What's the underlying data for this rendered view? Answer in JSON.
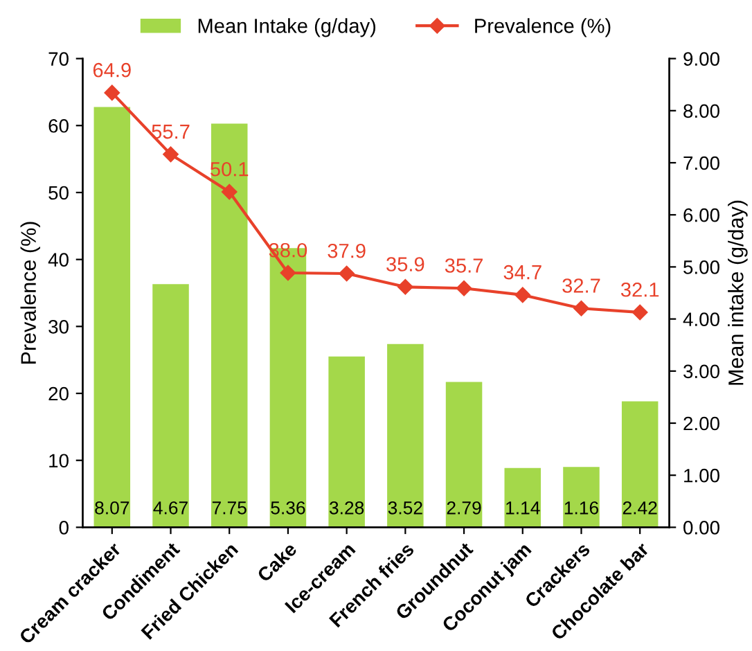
{
  "chart_data": {
    "type": "bar",
    "ylabel": "Prevalence (%)",
    "y2label": "Mean intake (g/day)",
    "categories": [
      "Cream cracker",
      "Condiment",
      "Fried Chicken",
      "Cake",
      "Ice-cream",
      "French fries",
      "Groundnut",
      "Coconut jam",
      "Crackers",
      "Chocolate bar"
    ],
    "series": [
      {
        "name": "Mean Intake (g/day)",
        "axis": "y2",
        "color": "#a4d84a",
        "values": [
          8.07,
          4.67,
          7.75,
          5.36,
          3.28,
          3.52,
          2.79,
          1.14,
          1.16,
          2.42
        ],
        "value_labels": [
          "8.07",
          "4.67",
          "7.75",
          "5.36",
          "3.28",
          "3.52",
          "2.79",
          "1.14",
          "1.16",
          "2.42"
        ]
      },
      {
        "name": "Prevalence (%)",
        "type": "line",
        "axis": "y",
        "color": "#e8412a",
        "marker": "diamond",
        "values": [
          64.9,
          55.7,
          50.1,
          38.0,
          37.9,
          35.9,
          35.7,
          34.7,
          32.7,
          32.1
        ],
        "value_labels": [
          "64.9",
          "55.7",
          "50.1",
          "38.0",
          "37.9",
          "35.9",
          "35.7",
          "34.7",
          "32.7",
          "32.1"
        ]
      }
    ],
    "ylim": [
      0,
      70
    ],
    "yticks": [
      0,
      10,
      20,
      30,
      40,
      50,
      60,
      70
    ],
    "y2lim": [
      0,
      9
    ],
    "y2ticks": [
      {
        "value": 0,
        "label": "0.00"
      },
      {
        "value": 1,
        "label": "1.00"
      },
      {
        "value": 2,
        "label": "2.00"
      },
      {
        "value": 3,
        "label": "3.00"
      },
      {
        "value": 4,
        "label": "4.00"
      },
      {
        "value": 5,
        "label": "5.00"
      },
      {
        "value": 6,
        "label": "6.00"
      },
      {
        "value": 7,
        "label": "7.00"
      },
      {
        "value": 8,
        "label": "8.00"
      },
      {
        "value": 9,
        "label": "9.00"
      }
    ],
    "grid": false,
    "legend": "top"
  }
}
